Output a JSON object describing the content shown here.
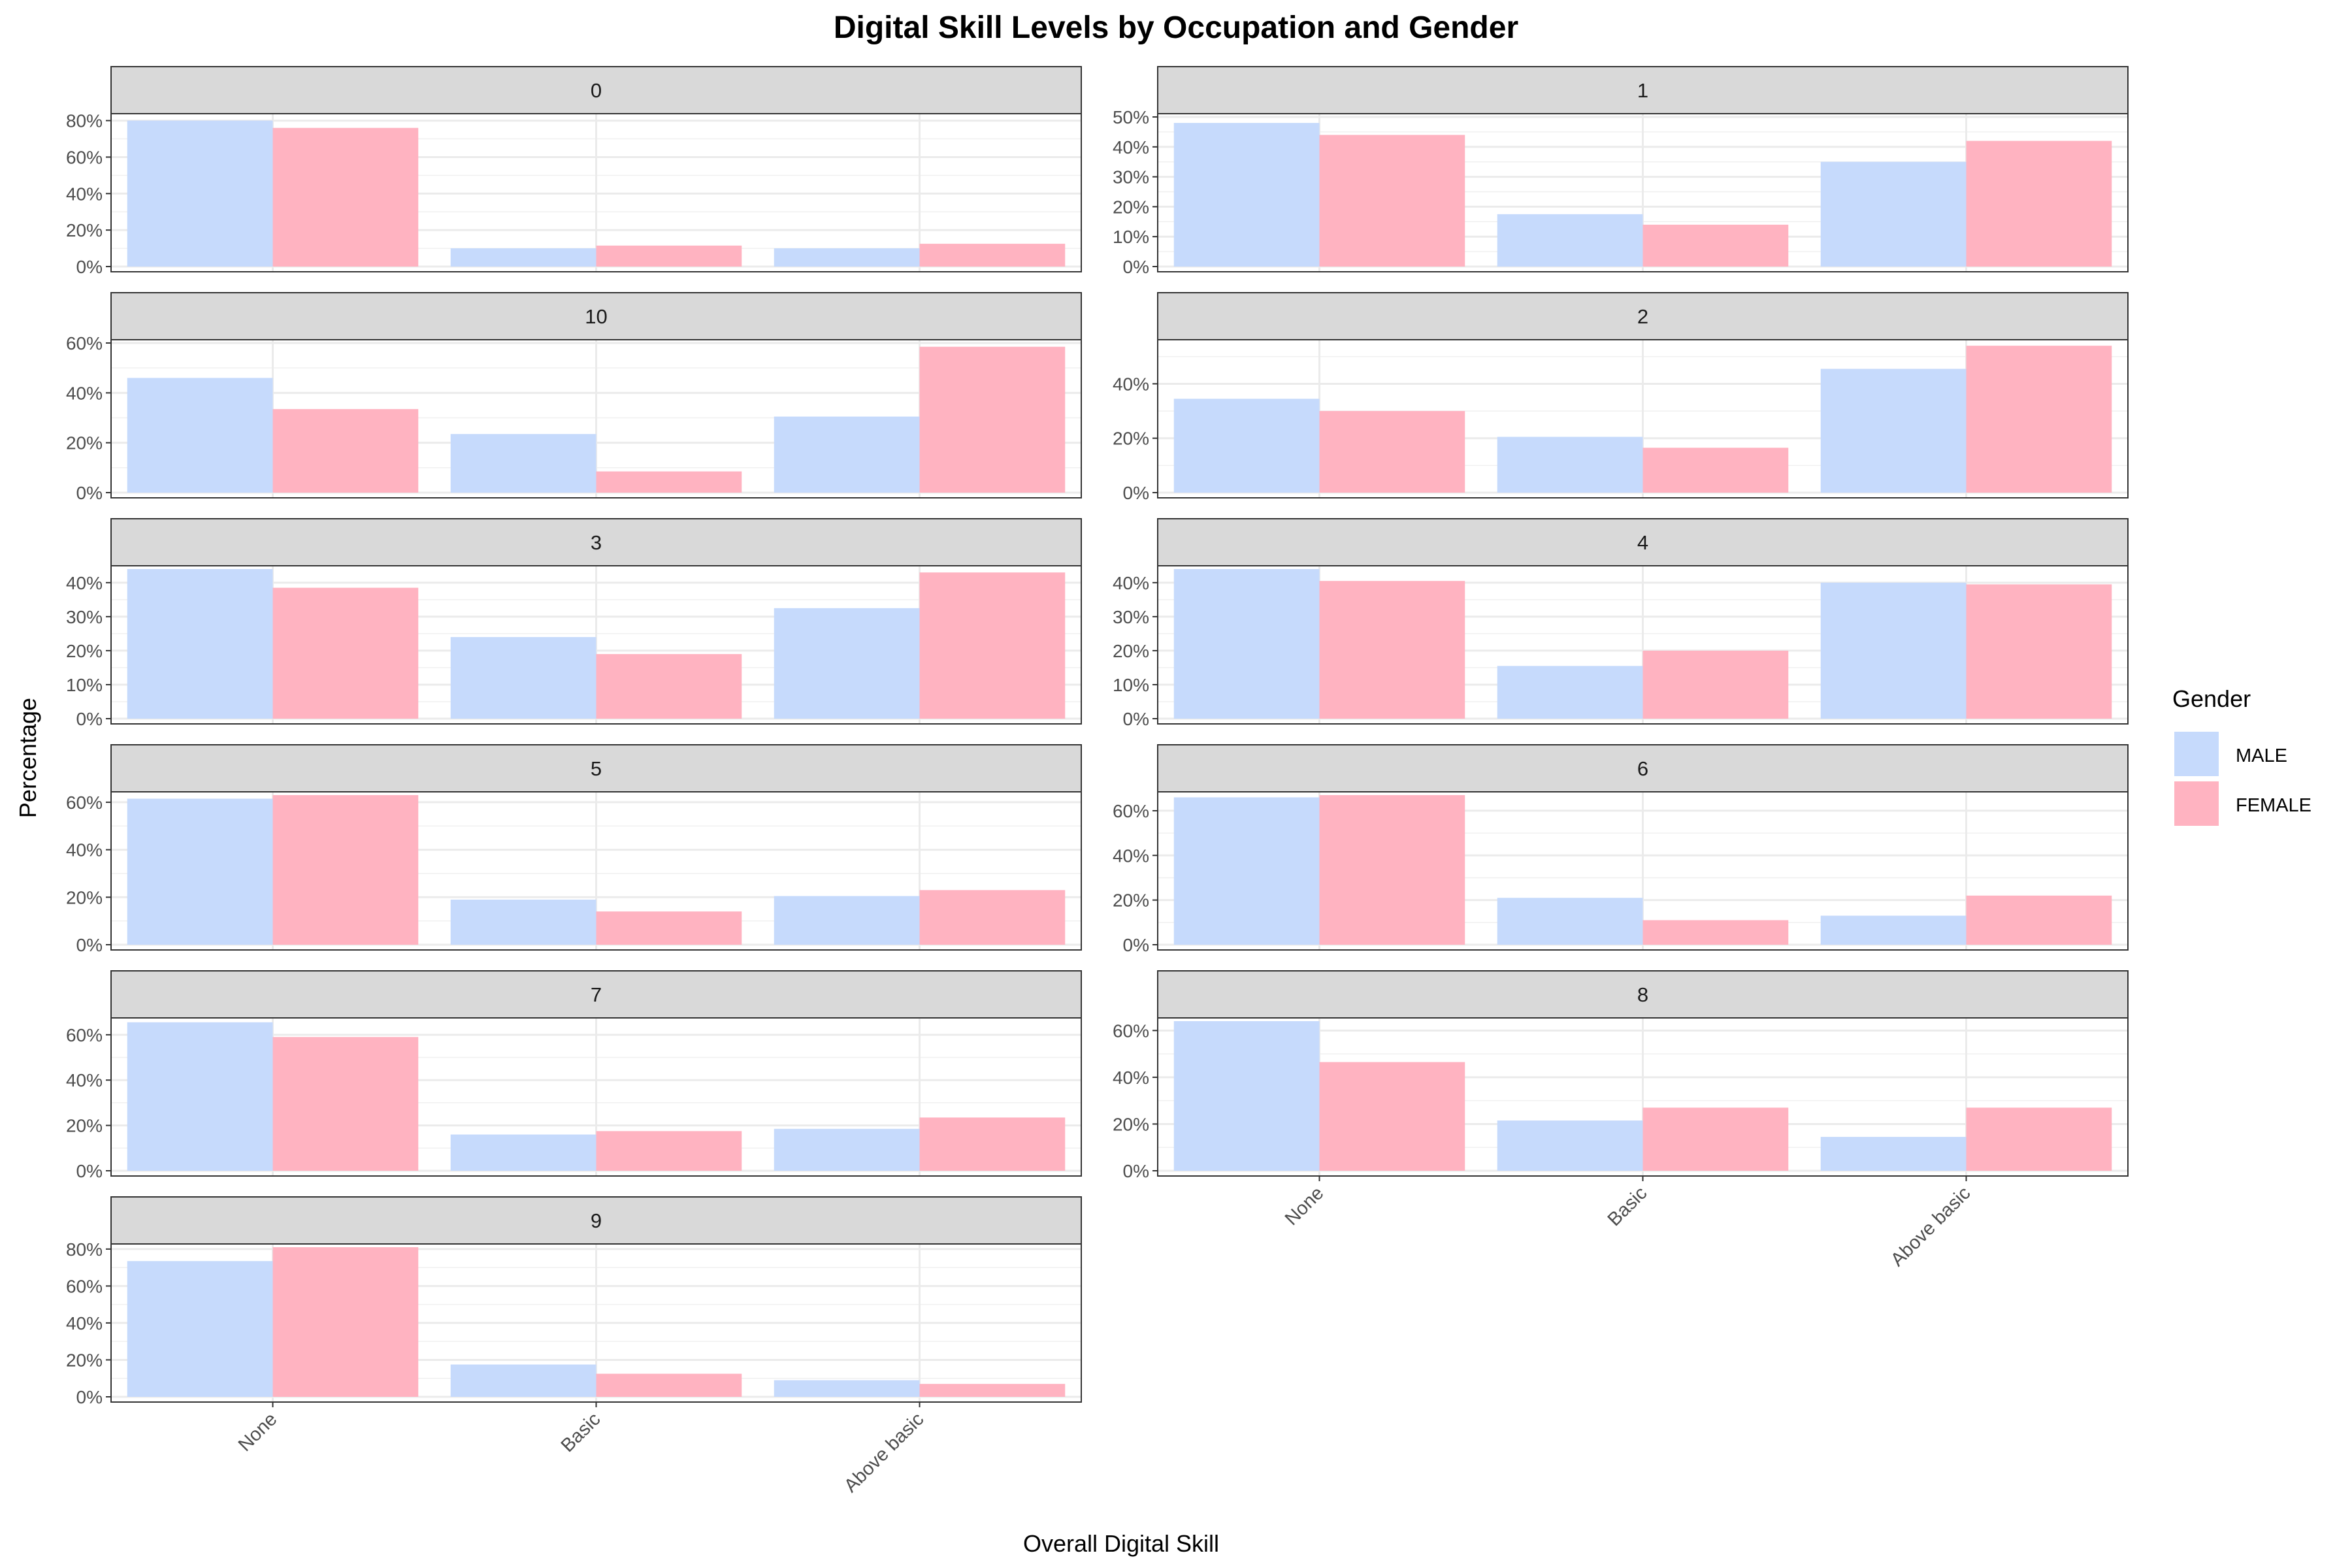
{
  "chart_data": {
    "type": "bar",
    "title": "Digital Skill Levels by Occupation and Gender",
    "xlabel": "Overall Digital Skill",
    "ylabel": "Percentage",
    "categories": [
      "None",
      "Basic",
      "Above basic"
    ],
    "legend": {
      "title": "Gender",
      "placement": "right",
      "entries": [
        {
          "name": "MALE",
          "color": "#c6dafc"
        },
        {
          "name": "FEMALE",
          "color": "#ffb3c1"
        }
      ]
    },
    "grid": true,
    "facets": [
      {
        "label": "0",
        "ylim": [
          0,
          82
        ],
        "ticks": [
          "0%",
          "20%",
          "40%",
          "60%",
          "80%"
        ],
        "tick_values": [
          0,
          20,
          40,
          60,
          80
        ],
        "series": [
          {
            "name": "MALE",
            "values": [
              80,
              10,
              10
            ]
          },
          {
            "name": "FEMALE",
            "values": [
              76,
              11.5,
              12.5
            ]
          }
        ]
      },
      {
        "label": "1",
        "ylim": [
          0,
          50
        ],
        "ticks": [
          "0%",
          "10%",
          "20%",
          "30%",
          "40%",
          "50%"
        ],
        "tick_values": [
          0,
          10,
          20,
          30,
          40,
          50
        ],
        "series": [
          {
            "name": "MALE",
            "values": [
              48,
              17.5,
              35
            ]
          },
          {
            "name": "FEMALE",
            "values": [
              44,
              14,
              42
            ]
          }
        ]
      },
      {
        "label": "10",
        "ylim": [
          0,
          60
        ],
        "ticks": [
          "0%",
          "20%",
          "40%",
          "60%"
        ],
        "tick_values": [
          0,
          20,
          40,
          60
        ],
        "series": [
          {
            "name": "MALE",
            "values": [
              46,
              23.5,
              30.5
            ]
          },
          {
            "name": "FEMALE",
            "values": [
              33.5,
              8.5,
              58.5
            ]
          }
        ]
      },
      {
        "label": "2",
        "ylim": [
          0,
          55
        ],
        "ticks": [
          "0%",
          "20%",
          "40%"
        ],
        "tick_values": [
          0,
          20,
          40
        ],
        "series": [
          {
            "name": "MALE",
            "values": [
              34.5,
              20.5,
              45.5
            ]
          },
          {
            "name": "FEMALE",
            "values": [
              30,
              16.5,
              54
            ]
          }
        ]
      },
      {
        "label": "3",
        "ylim": [
          0,
          44
        ],
        "ticks": [
          "0%",
          "10%",
          "20%",
          "30%",
          "40%"
        ],
        "tick_values": [
          0,
          10,
          20,
          30,
          40
        ],
        "series": [
          {
            "name": "MALE",
            "values": [
              44,
              24,
              32.5
            ]
          },
          {
            "name": "FEMALE",
            "values": [
              38.5,
              19,
              43
            ]
          }
        ]
      },
      {
        "label": "4",
        "ylim": [
          0,
          44
        ],
        "ticks": [
          "0%",
          "10%",
          "20%",
          "30%",
          "40%"
        ],
        "tick_values": [
          0,
          10,
          20,
          30,
          40
        ],
        "series": [
          {
            "name": "MALE",
            "values": [
              44,
              15.5,
              40
            ]
          },
          {
            "name": "FEMALE",
            "values": [
              40.5,
              20,
              39.5
            ]
          }
        ]
      },
      {
        "label": "5",
        "ylim": [
          0,
          63
        ],
        "ticks": [
          "0%",
          "20%",
          "40%",
          "60%"
        ],
        "tick_values": [
          0,
          20,
          40,
          60
        ],
        "series": [
          {
            "name": "MALE",
            "values": [
              61.5,
              19,
              20.5
            ]
          },
          {
            "name": "FEMALE",
            "values": [
              63,
              14,
              23
            ]
          }
        ]
      },
      {
        "label": "6",
        "ylim": [
          0,
          67
        ],
        "ticks": [
          "0%",
          "20%",
          "40%",
          "60%"
        ],
        "tick_values": [
          0,
          20,
          40,
          60
        ],
        "series": [
          {
            "name": "MALE",
            "values": [
              66,
              21,
              13
            ]
          },
          {
            "name": "FEMALE",
            "values": [
              67,
              11,
              22
            ]
          }
        ]
      },
      {
        "label": "7",
        "ylim": [
          0,
          66
        ],
        "ticks": [
          "0%",
          "20%",
          "40%",
          "60%"
        ],
        "tick_values": [
          0,
          20,
          40,
          60
        ],
        "series": [
          {
            "name": "MALE",
            "values": [
              65.5,
              16,
              18.5
            ]
          },
          {
            "name": "FEMALE",
            "values": [
              59,
              17.5,
              23.5
            ]
          }
        ]
      },
      {
        "label": "8",
        "ylim": [
          0,
          64
        ],
        "ticks": [
          "0%",
          "20%",
          "40%",
          "60%"
        ],
        "tick_values": [
          0,
          20,
          40,
          60
        ],
        "series": [
          {
            "name": "MALE",
            "values": [
              64,
              21.5,
              14.5
            ]
          },
          {
            "name": "FEMALE",
            "values": [
              46.5,
              27,
              27
            ]
          }
        ]
      },
      {
        "label": "9",
        "ylim": [
          0,
          81
        ],
        "ticks": [
          "0%",
          "20%",
          "40%",
          "60%",
          "80%"
        ],
        "tick_values": [
          0,
          20,
          40,
          60,
          80
        ],
        "series": [
          {
            "name": "MALE",
            "values": [
              73.5,
              17.5,
              9
            ]
          },
          {
            "name": "FEMALE",
            "values": [
              81,
              12.5,
              7
            ]
          }
        ]
      }
    ]
  }
}
